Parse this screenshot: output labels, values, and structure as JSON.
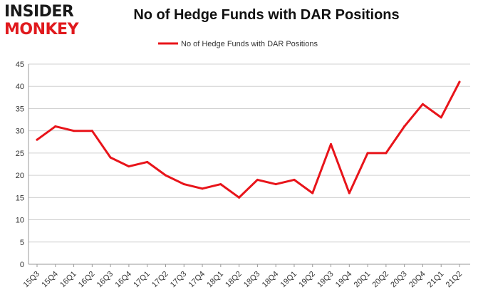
{
  "logo": {
    "line1": "INSIDER",
    "line2": "MONKEY"
  },
  "colors": {
    "series": "#e8141a",
    "grid": "#d0d0d0",
    "axis": "#999999",
    "logo_red": "#e0191d"
  },
  "chart_data": {
    "type": "line",
    "title": "No of Hedge Funds with DAR Positions",
    "xlabel": "",
    "ylabel": "",
    "categories": [
      "15Q3",
      "15Q4",
      "16Q1",
      "16Q2",
      "16Q3",
      "16Q4",
      "17Q1",
      "17Q2",
      "17Q3",
      "17Q4",
      "18Q1",
      "18Q2",
      "18Q3",
      "18Q4",
      "19Q1",
      "19Q2",
      "19Q3",
      "19Q4",
      "20Q1",
      "20Q2",
      "20Q3",
      "20Q4",
      "21Q1",
      "21Q2"
    ],
    "series": [
      {
        "name": "No of Hedge Funds with DAR Positions",
        "values": [
          28,
          31,
          30,
          30,
          24,
          22,
          23,
          20,
          18,
          17,
          18,
          15,
          19,
          18,
          19,
          16,
          27,
          16,
          25,
          25,
          31,
          36,
          33,
          41
        ]
      }
    ],
    "ylim": [
      0,
      45
    ],
    "yticks": [
      0,
      5,
      10,
      15,
      20,
      25,
      30,
      35,
      40,
      45
    ],
    "grid": "horizontal",
    "legend": "top-center"
  }
}
